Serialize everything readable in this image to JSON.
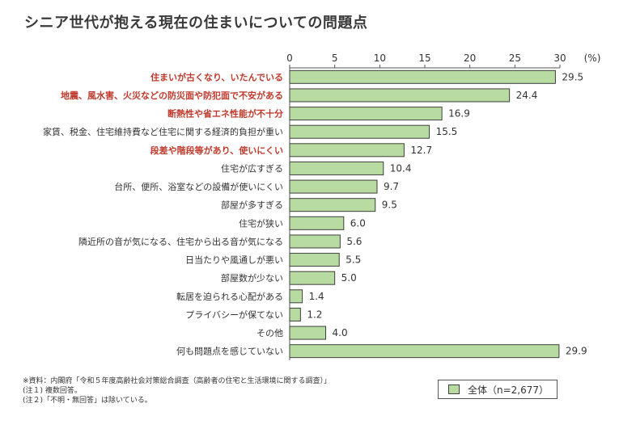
{
  "chart_data": {
    "type": "bar",
    "orientation": "horizontal",
    "title": "シニア世代が抱える現在の住まいについての問題点",
    "unit_label": "(%)",
    "xlim": [
      0,
      30
    ],
    "ticks": [
      0,
      5,
      10,
      15,
      20,
      25,
      30
    ],
    "bar_color": "#b7dba0",
    "highlight_color": "#c0392b",
    "categories": [
      "住まいが古くなり、いたんでいる",
      "地震、風水害、火災などの防災面や防犯面で不安がある",
      "断熱性や省エネ性能が不十分",
      "家賃、税金、住宅維持費など住宅に関する経済的負担が重い",
      "段差や階段等があり、使いにくい",
      "住宅が広すぎる",
      "台所、便所、浴室などの設備が使いにくい",
      "部屋が多すぎる",
      "住宅が狭い",
      "隣近所の音が気になる、住宅から出る音が気になる",
      "日当たりや風通しが悪い",
      "部屋数が少ない",
      "転居を迫られる心配がある",
      "プライバシーが保てない",
      "その他",
      "何も問題点を感じていない"
    ],
    "highlighted": [
      true,
      true,
      true,
      false,
      true,
      false,
      false,
      false,
      false,
      false,
      false,
      false,
      false,
      false,
      false,
      false
    ],
    "values": [
      29.5,
      24.4,
      16.9,
      15.5,
      12.7,
      10.4,
      9.7,
      9.5,
      6.0,
      5.6,
      5.5,
      5.0,
      1.4,
      1.2,
      4.0,
      29.9
    ],
    "value_labels": [
      "29.5",
      "24.4",
      "16.9",
      "15.5",
      "12.7",
      "10.4",
      "9.7",
      "9.5",
      "6.0",
      "5.6",
      "5.5",
      "5.0",
      "1.4",
      "1.2",
      "4.0",
      "29.9"
    ],
    "legend": "全体（n=2,677）"
  },
  "notes": [
    "※資料：内閣府「令和５年度高齢社会対策総合調査（高齢者の住宅と生活環境に関する調査）」",
    "(注１) 複数回答。",
    "(注２)「不明・無回答」は除いている。"
  ]
}
